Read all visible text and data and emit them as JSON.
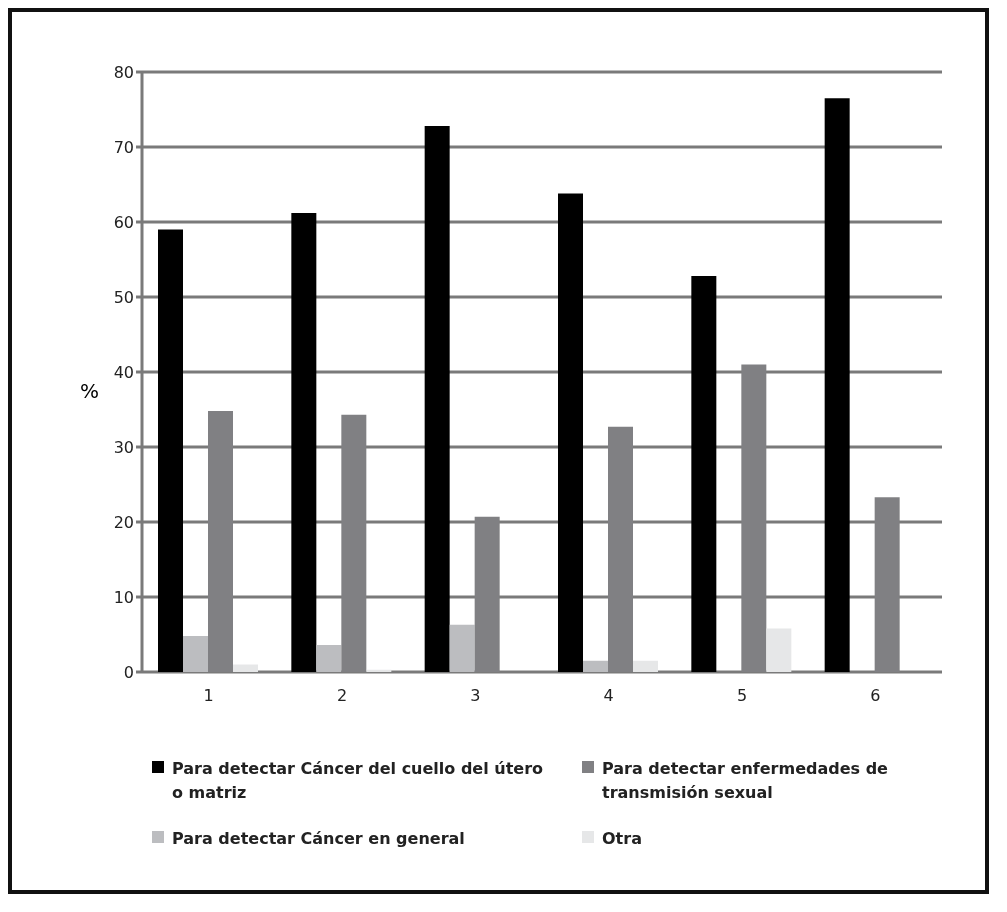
{
  "chart_data": {
    "type": "bar",
    "ylabel": "%",
    "categories": [
      "1",
      "2",
      "3",
      "4",
      "5",
      "6"
    ],
    "series": [
      {
        "name": "Para detectar Cáncer del cuello del útero o  matriz",
        "color": "#000000",
        "values": [
          59,
          61.2,
          72.8,
          63.8,
          52.8,
          76.5
        ]
      },
      {
        "name": "Para detectar Cáncer en general",
        "color": "#bcbdc0",
        "values": [
          4.8,
          3.6,
          6.3,
          1.5,
          0,
          0
        ]
      },
      {
        "name": "Para detectar enfermedades de transmisión sexual",
        "color": "#808083",
        "values": [
          34.8,
          34.3,
          20.7,
          32.7,
          41,
          23.3
        ]
      },
      {
        "name": "Otra",
        "color": "#e6e7e8",
        "values": [
          1,
          0.3,
          0,
          1.5,
          5.8,
          0
        ]
      }
    ],
    "ylim": [
      0,
      80
    ],
    "yticks": [
      0,
      10,
      20,
      30,
      40,
      50,
      60,
      70,
      80
    ],
    "grid": "y",
    "legend": "bottom"
  }
}
